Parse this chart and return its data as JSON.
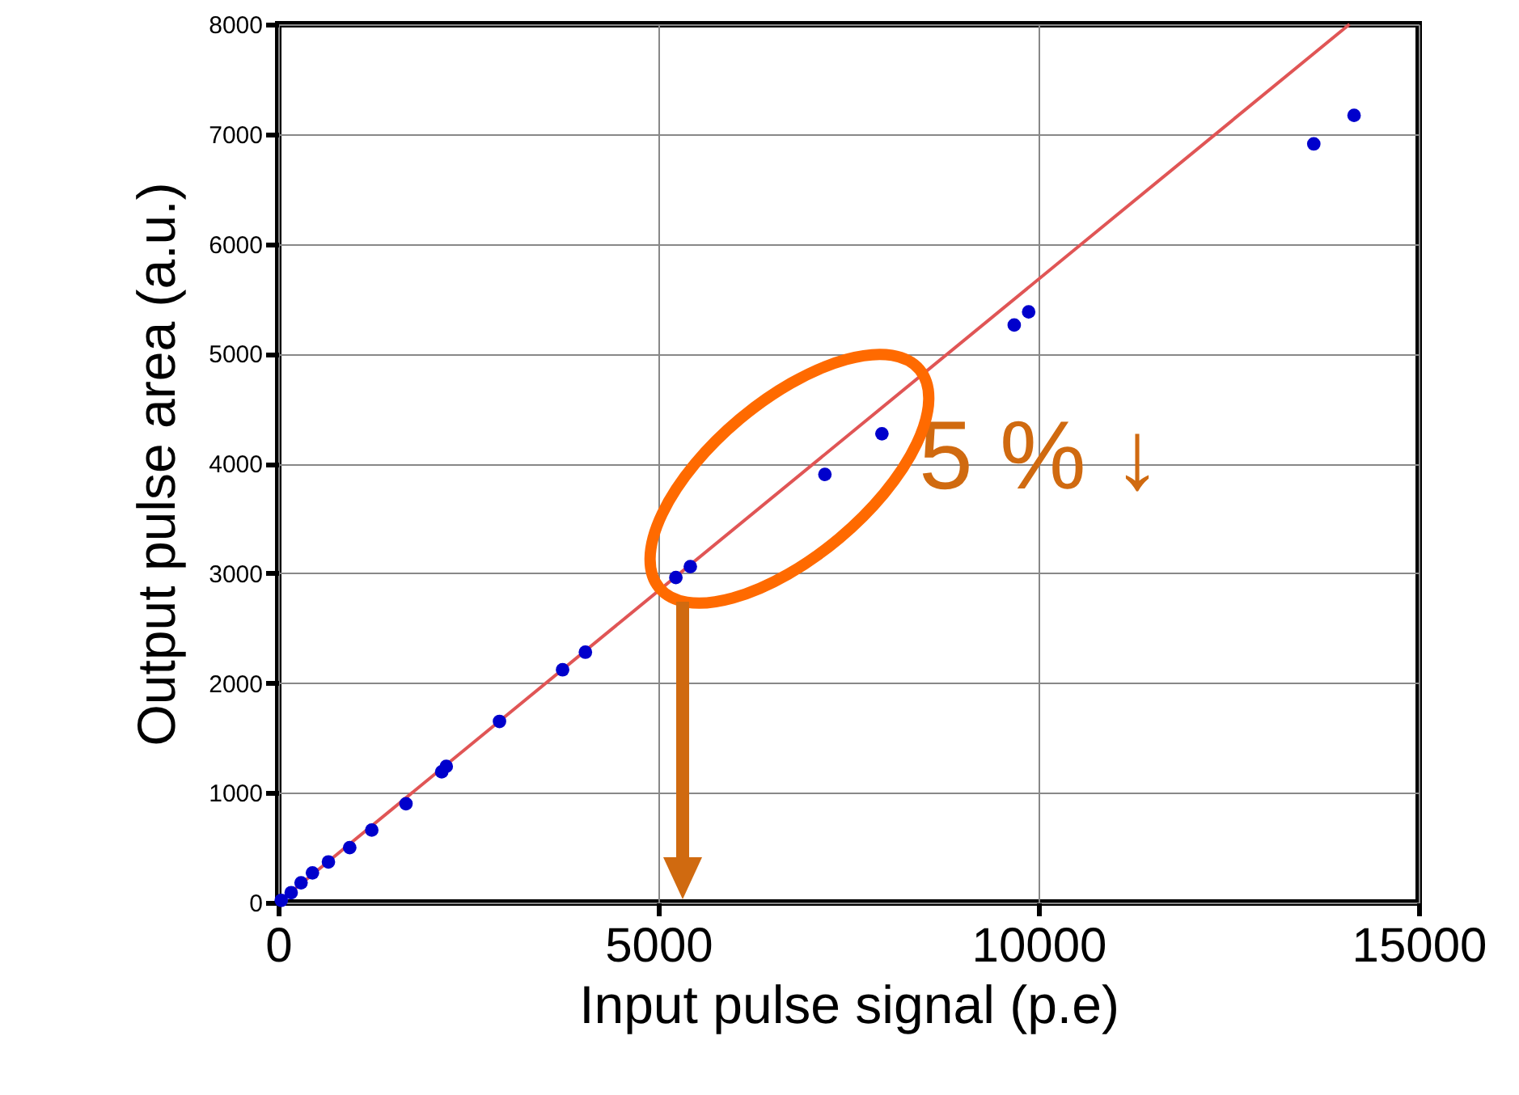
{
  "chart_data": {
    "type": "scatter",
    "xlabel": "Input pulse signal (p.e)",
    "ylabel": "Output pulse area (a.u.)",
    "xlim": [
      0,
      15000
    ],
    "ylim": [
      0,
      8000
    ],
    "xticks": [
      0,
      5000,
      10000,
      15000
    ],
    "yticks": [
      0,
      1000,
      2000,
      3000,
      4000,
      5000,
      6000,
      7000,
      8000
    ],
    "grid": true,
    "marker": "circle",
    "annotations": [
      "5 % ↓"
    ],
    "series": [
      {
        "color": "#0000cc",
        "x": [
          40,
          170,
          300,
          450,
          660,
          940,
          1230,
          1680,
          2150,
          2210,
          2910,
          3740,
          4040,
          5230,
          5420,
          7190,
          7940,
          9680,
          9870,
          13620,
          14150
        ],
        "values": [
          20,
          90,
          180,
          270,
          370,
          500,
          660,
          900,
          1190,
          1240,
          1650,
          2120,
          2280,
          2960,
          3060,
          3900,
          4270,
          5260,
          5380,
          6910,
          7170
        ]
      },
      {
        "type": "line",
        "marker": "none",
        "color": "#e05555",
        "x": [
          0,
          14090
        ],
        "values": [
          0,
          8000
        ]
      }
    ]
  }
}
